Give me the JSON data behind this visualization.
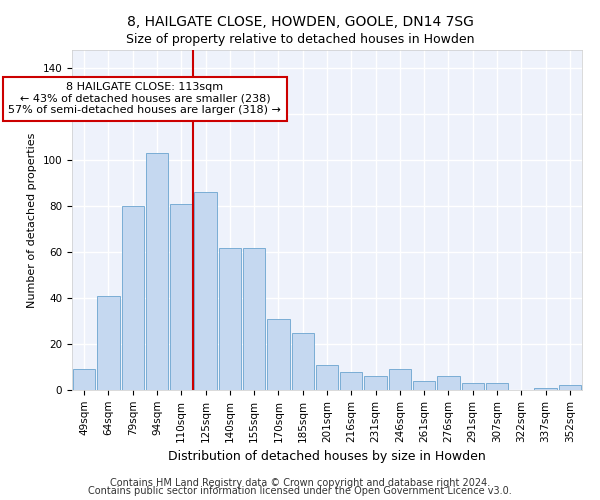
{
  "title": "8, HAILGATE CLOSE, HOWDEN, GOOLE, DN14 7SG",
  "subtitle": "Size of property relative to detached houses in Howden",
  "xlabel": "Distribution of detached houses by size in Howden",
  "ylabel": "Number of detached properties",
  "categories": [
    "49sqm",
    "64sqm",
    "79sqm",
    "94sqm",
    "110sqm",
    "125sqm",
    "140sqm",
    "155sqm",
    "170sqm",
    "185sqm",
    "201sqm",
    "216sqm",
    "231sqm",
    "246sqm",
    "261sqm",
    "276sqm",
    "291sqm",
    "307sqm",
    "322sqm",
    "337sqm",
    "352sqm"
  ],
  "values": [
    9,
    41,
    80,
    103,
    81,
    86,
    62,
    62,
    31,
    25,
    11,
    8,
    6,
    9,
    4,
    6,
    3,
    3,
    0,
    1,
    2
  ],
  "bar_color": "#c5d8f0",
  "bar_edge_color": "#7aadd4",
  "vline_color": "#cc0000",
  "annotation_line1": "8 HAILGATE CLOSE: 113sqm",
  "annotation_line2": "← 43% of detached houses are smaller (238)",
  "annotation_line3": "57% of semi-detached houses are larger (318) →",
  "annotation_box_facecolor": "#ffffff",
  "annotation_box_edgecolor": "#cc0000",
  "ylim": [
    0,
    148
  ],
  "yticks": [
    0,
    20,
    40,
    60,
    80,
    100,
    120,
    140
  ],
  "footnote1": "Contains HM Land Registry data © Crown copyright and database right 2024.",
  "footnote2": "Contains public sector information licensed under the Open Government Licence v3.0.",
  "bg_color": "#ffffff",
  "plot_bg_color": "#eef2fb",
  "grid_color": "#ffffff",
  "title_fontsize": 10,
  "subtitle_fontsize": 9,
  "xlabel_fontsize": 9,
  "ylabel_fontsize": 8,
  "tick_fontsize": 7.5,
  "annotation_fontsize": 8,
  "footnote_fontsize": 7
}
